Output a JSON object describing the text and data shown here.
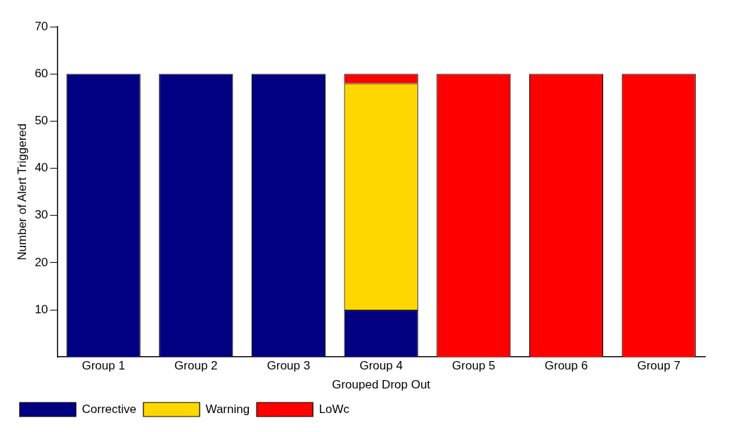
{
  "chart_data": {
    "type": "bar",
    "stacked": true,
    "xlabel": "Grouped Drop Out",
    "ylabel": "Number of Alert Triggered",
    "categories": [
      "Group 1",
      "Group 2",
      "Group 3",
      "Group 4",
      "Group 5",
      "Group 6",
      "Group 7"
    ],
    "series": [
      {
        "name": "Corrective",
        "color": "#000080",
        "values": [
          60,
          60,
          60,
          10,
          0,
          0,
          0
        ]
      },
      {
        "name": "Warning",
        "color": "#ffd700",
        "values": [
          0,
          0,
          0,
          48,
          0,
          0,
          0
        ]
      },
      {
        "name": "LoWc",
        "color": "#ff0000",
        "values": [
          0,
          0,
          0,
          2,
          60,
          60,
          60
        ]
      }
    ],
    "ylim": [
      0,
      70
    ],
    "yticks": [
      10,
      20,
      30,
      40,
      50,
      60,
      70
    ],
    "grid": false,
    "legend": "bottom left"
  }
}
